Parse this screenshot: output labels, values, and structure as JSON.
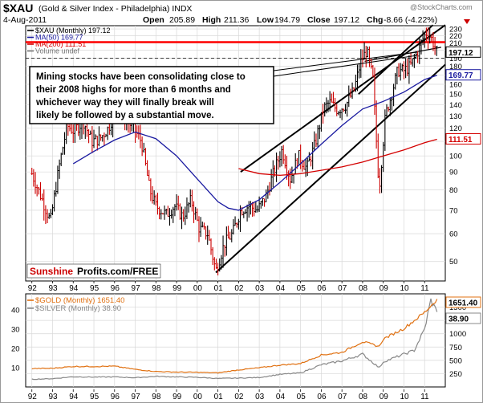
{
  "header": {
    "symbol": "$XAU",
    "description": "(Gold & Silver Index - Philadelphia) INDX",
    "watermark": "@StockCharts.com",
    "date": "4-Aug-2011",
    "open_label": "Open",
    "open": "205.89",
    "high_label": "High",
    "high": "211.36",
    "low_label": "Low",
    "low": "194.79",
    "close_label": "Close",
    "close": "197.12",
    "chg_label": "Chg",
    "chg": "-8.66 (-4.22%)"
  },
  "legend_top": [
    {
      "text": "$XAU (Monthly) 197.12",
      "color": "#000000"
    },
    {
      "text": "MA(50) 169.77",
      "color": "#1a1aa0"
    },
    {
      "text": "MA(200) 111.51",
      "color": "#d40000"
    },
    {
      "text": "Volume undef",
      "color": "#777777"
    }
  ],
  "annotation": "Mining stocks have been consolidating close to their 2008 highs for more than 6 months and whichever way they will finally break will likely be followed by a substantial move.",
  "brand": {
    "part1": "Sunshine",
    "part2": "Profits.com/FREE"
  },
  "legend_bottom": [
    {
      "text": "$GOLD (Monthly) 1651.40",
      "color": "#e07010"
    },
    {
      "text": "$SILVER (Monthly) 38.90",
      "color": "#888888"
    }
  ],
  "colors": {
    "xau": "#000000",
    "down": "#cc0000",
    "ma50": "#1a1aa0",
    "ma200": "#d40000",
    "gold": "#e07010",
    "silver": "#888888",
    "resistance": "#ff0000"
  },
  "chart_data": [
    {
      "type": "bar",
      "name": "xau-monthly",
      "scale": "log",
      "y_ticks": [
        50,
        60,
        70,
        80,
        90,
        100,
        110,
        120,
        130,
        140,
        150,
        160,
        170,
        180,
        190,
        200,
        210,
        220,
        230
      ],
      "ylim": [
        44,
        235
      ],
      "x_ticks": [
        "92",
        "93",
        "94",
        "95",
        "96",
        "97",
        "98",
        "99",
        "00",
        "01",
        "02",
        "03",
        "04",
        "05",
        "06",
        "07",
        "08",
        "09",
        "10",
        "11"
      ],
      "xlim": [
        1991.7,
        2012.0
      ],
      "last_value_label": "197.12",
      "ma50_value_label": "169.77",
      "ma200_value_label": "111.51",
      "resistance_level": 211,
      "series_xau": [
        [
          1992.0,
          89
        ],
        [
          1992.5,
          75
        ],
        [
          1992.9,
          65
        ],
        [
          1993.3,
          92
        ],
        [
          1993.7,
          122
        ],
        [
          1994.0,
          118
        ],
        [
          1994.5,
          125
        ],
        [
          1994.9,
          110
        ],
        [
          1995.3,
          112
        ],
        [
          1995.7,
          120
        ],
        [
          1996.1,
          138
        ],
        [
          1996.5,
          128
        ],
        [
          1996.9,
          120
        ],
        [
          1997.3,
          110
        ],
        [
          1997.7,
          80
        ],
        [
          1998.0,
          72
        ],
        [
          1998.5,
          68
        ],
        [
          1998.9,
          72
        ],
        [
          1999.3,
          67
        ],
        [
          1999.7,
          75
        ],
        [
          2000.1,
          62
        ],
        [
          2000.5,
          60
        ],
        [
          2000.9,
          47
        ],
        [
          2001.3,
          56
        ],
        [
          2001.7,
          60
        ],
        [
          2002.1,
          70
        ],
        [
          2002.5,
          72
        ],
        [
          2002.9,
          70
        ],
        [
          2003.3,
          76
        ],
        [
          2003.7,
          90
        ],
        [
          2004.1,
          104
        ],
        [
          2004.5,
          86
        ],
        [
          2004.9,
          100
        ],
        [
          2005.3,
          92
        ],
        [
          2005.7,
          108
        ],
        [
          2006.1,
          136
        ],
        [
          2006.4,
          142
        ],
        [
          2006.8,
          135
        ],
        [
          2007.2,
          140
        ],
        [
          2007.6,
          155
        ],
        [
          2007.9,
          185
        ],
        [
          2008.2,
          200
        ],
        [
          2008.5,
          165
        ],
        [
          2008.8,
          80
        ],
        [
          2009.1,
          130
        ],
        [
          2009.4,
          150
        ],
        [
          2009.7,
          175
        ],
        [
          2010.0,
          175
        ],
        [
          2010.3,
          180
        ],
        [
          2010.7,
          200
        ],
        [
          2010.9,
          215
        ],
        [
          2011.1,
          225
        ],
        [
          2011.3,
          218
        ],
        [
          2011.5,
          205
        ],
        [
          2011.6,
          197.12
        ]
      ],
      "series_ma50": [
        [
          1994.0,
          95
        ],
        [
          1995.0,
          103
        ],
        [
          1996.0,
          111
        ],
        [
          1997.0,
          117
        ],
        [
          1998.0,
          112
        ],
        [
          1999.0,
          100
        ],
        [
          2000.0,
          86
        ],
        [
          2001.0,
          74
        ],
        [
          2001.5,
          71
        ],
        [
          2002.0,
          70
        ],
        [
          2003.0,
          75
        ],
        [
          2004.0,
          84
        ],
        [
          2005.0,
          95
        ],
        [
          2006.0,
          108
        ],
        [
          2007.0,
          122
        ],
        [
          2008.0,
          136
        ],
        [
          2009.0,
          143
        ],
        [
          2010.0,
          152
        ],
        [
          2011.0,
          165
        ],
        [
          2011.6,
          169.77
        ]
      ],
      "series_ma200": [
        [
          2002.0,
          92
        ],
        [
          2003.0,
          89
        ],
        [
          2004.0,
          88
        ],
        [
          2005.0,
          89
        ],
        [
          2006.0,
          91
        ],
        [
          2007.0,
          93
        ],
        [
          2008.0,
          96
        ],
        [
          2009.0,
          100
        ],
        [
          2010.0,
          104
        ],
        [
          2011.0,
          109
        ],
        [
          2011.6,
          111.51
        ]
      ]
    },
    {
      "type": "line",
      "name": "gold-silver-monthly",
      "y_left_ticks": [
        10,
        20,
        30,
        40
      ],
      "y_right_ticks": [
        250,
        500,
        750,
        1000,
        1250,
        1500
      ],
      "ylim": [
        0,
        1750
      ],
      "last_gold_label": "1651.40",
      "last_silver_label": "38.90",
      "series": [
        {
          "name": "$GOLD",
          "values": [
            [
              1992.0,
              345
            ],
            [
              1993.0,
              350
            ],
            [
              1994.0,
              385
            ],
            [
              1995.0,
              385
            ],
            [
              1996.0,
              390
            ],
            [
              1997.0,
              330
            ],
            [
              1998.0,
              290
            ],
            [
              1999.0,
              280
            ],
            [
              2000.0,
              275
            ],
            [
              2001.0,
              265
            ],
            [
              2002.0,
              320
            ],
            [
              2003.0,
              360
            ],
            [
              2004.0,
              410
            ],
            [
              2005.0,
              440
            ],
            [
              2006.0,
              600
            ],
            [
              2007.0,
              650
            ],
            [
              2008.0,
              850
            ],
            [
              2008.8,
              760
            ],
            [
              2009.0,
              900
            ],
            [
              2010.0,
              1100
            ],
            [
              2010.5,
              1250
            ],
            [
              2011.0,
              1400
            ],
            [
              2011.6,
              1651.4
            ]
          ]
        },
        {
          "name": "$SILVER",
          "values": [
            [
              1992.0,
              4.0
            ],
            [
              1993.0,
              4.3
            ],
            [
              1994.0,
              5.3
            ],
            [
              1995.0,
              5.1
            ],
            [
              1996.0,
              5.2
            ],
            [
              1997.0,
              4.8
            ],
            [
              1998.0,
              5.5
            ],
            [
              1999.0,
              5.2
            ],
            [
              2000.0,
              5.0
            ],
            [
              2001.0,
              4.4
            ],
            [
              2002.0,
              4.6
            ],
            [
              2003.0,
              4.9
            ],
            [
              2004.0,
              6.5
            ],
            [
              2005.0,
              7.3
            ],
            [
              2006.0,
              11.5
            ],
            [
              2007.0,
              13.5
            ],
            [
              2008.0,
              17
            ],
            [
              2008.8,
              10
            ],
            [
              2009.0,
              13
            ],
            [
              2010.0,
              17
            ],
            [
              2010.5,
              19
            ],
            [
              2011.0,
              30
            ],
            [
              2011.3,
              45
            ],
            [
              2011.6,
              38.9
            ]
          ]
        }
      ]
    }
  ]
}
